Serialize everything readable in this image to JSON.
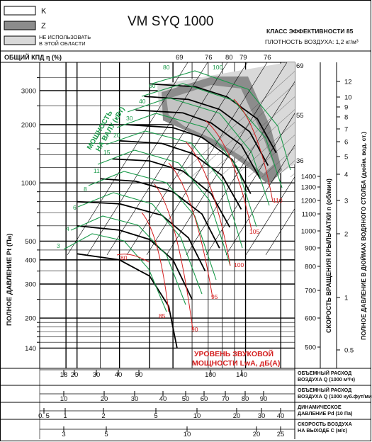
{
  "legend": {
    "items": [
      {
        "label": "K",
        "color": "#ffffff"
      },
      {
        "label": "Z",
        "color": "#8c8c8c"
      },
      {
        "label": "НЕ ИСПОЛЬЗОВАТЬ\nВ ЭТОЙ ОБЛАСТИ",
        "color": "#d9d9d9"
      }
    ]
  },
  "chart_data": {
    "type": "line",
    "title": "VM SYQ 1000",
    "efficiency_class": "КЛАСС ЭФФЕКТИВНОСТИ 85",
    "air_density": "ПЛОТНОСТЬ ВОЗДУХА: 1,2 кг/м³",
    "efficiency_label": "ОБЩИЙ КПД η (%)",
    "ylabel": "ПОЛНОЕ ДАВЛЕНИЕ Pt (Па)",
    "y_scale": "log",
    "ylim": [
      110,
      4200
    ],
    "y_ticks": [
      140,
      200,
      300,
      400,
      500,
      1000,
      2000,
      3000
    ],
    "xlim": [
      14,
      160
    ],
    "x_scale": "log",
    "right_axes": {
      "rpm_label": "СКОРОСТЬ ВРАЩЕНИЯ КРЫЛЬЧАТКИ  n (об/мин)",
      "rpm_ticks": [
        500,
        600,
        700,
        800,
        900,
        1000,
        1100,
        1200,
        1300,
        1400
      ],
      "wc_label": "ПОЛНОЕ ДАВЛЕНИЕ В ДЮЙМАХ ВОДЯНОГО СТОЛБА (дюйм. вод. ст.)",
      "wc_ticks": [
        0.5,
        1,
        2,
        3,
        4,
        5,
        6,
        7,
        8,
        9,
        10,
        12
      ]
    },
    "efficiency_top_labels": [
      "69",
      "76",
      "80",
      "79",
      "76"
    ],
    "efficiency_right_labels": [
      "69",
      "55",
      "36"
    ],
    "shaft_power_label": "МОЩНОСТЬ НА ВАЛУ (кВт)",
    "power_lines": [
      "3",
      "4",
      "6",
      "8",
      "11",
      "15",
      "20",
      "30",
      "40",
      "60",
      "80",
      "100"
    ],
    "sound_label_line1": "УРОВЕНЬ ЗВУКОВОЙ",
    "sound_label_line2": "МОЩНОСТИ LwA, дБ(А)",
    "sound_lines": [
      "80",
      "85",
      "90",
      "95",
      "100",
      "105",
      "110"
    ],
    "series": [
      {
        "rpm": 500,
        "points": [
          [
            20,
            430
          ],
          [
            30,
            400
          ],
          [
            40,
            330
          ],
          [
            48,
            230
          ],
          [
            52,
            140
          ]
        ]
      },
      {
        "rpm": 600,
        "points": [
          [
            20,
            600
          ],
          [
            30,
            570
          ],
          [
            40,
            510
          ],
          [
            50,
            400
          ],
          [
            60,
            250
          ]
        ]
      },
      {
        "rpm": 700,
        "points": [
          [
            20,
            800
          ],
          [
            30,
            780
          ],
          [
            45,
            680
          ],
          [
            58,
            520
          ],
          [
            68,
            350
          ]
        ]
      },
      {
        "rpm": 800,
        "points": [
          [
            25,
            1050
          ],
          [
            35,
            1020
          ],
          [
            50,
            900
          ],
          [
            66,
            690
          ],
          [
            78,
            460
          ]
        ]
      },
      {
        "rpm": 900,
        "points": [
          [
            28,
            1330
          ],
          [
            40,
            1300
          ],
          [
            55,
            1150
          ],
          [
            72,
            880
          ],
          [
            86,
            590
          ]
        ]
      },
      {
        "rpm": 1000,
        "points": [
          [
            30,
            1650
          ],
          [
            45,
            1600
          ],
          [
            60,
            1420
          ],
          [
            80,
            1090
          ],
          [
            96,
            730
          ]
        ]
      },
      {
        "rpm": 1100,
        "points": [
          [
            32,
            2000
          ],
          [
            50,
            1930
          ],
          [
            66,
            1720
          ],
          [
            88,
            1320
          ],
          [
            105,
            880
          ]
        ]
      },
      {
        "rpm": 1200,
        "points": [
          [
            35,
            2380
          ],
          [
            55,
            2300
          ],
          [
            72,
            2040
          ],
          [
            96,
            1570
          ],
          [
            115,
            1050
          ]
        ]
      },
      {
        "rpm": 1300,
        "points": [
          [
            38,
            2800
          ],
          [
            58,
            2700
          ],
          [
            78,
            2400
          ],
          [
            104,
            1840
          ],
          [
            124,
            1230
          ]
        ]
      },
      {
        "rpm": 1400,
        "points": [
          [
            40,
            3250
          ],
          [
            62,
            3140
          ],
          [
            84,
            2780
          ],
          [
            112,
            2140
          ],
          [
            134,
            1430
          ]
        ]
      }
    ]
  },
  "bottom_scales": [
    {
      "label": "ОБЪЕМНЫЙ РАСХОД\nВОЗДУХА Q (1000 м³/ч)",
      "ticks": [
        "18",
        "20",
        "30",
        "40",
        "50",
        "100",
        "140"
      ]
    },
    {
      "label": "ОБЪЕМНЫЙ РАСХОД\nВОЗДУХА Q (1000 куб.фут/мин)",
      "ticks": [
        "10",
        "20",
        "30",
        "40",
        "50",
        "60",
        "70",
        "80",
        "90"
      ]
    },
    {
      "label": "ДИНАМИЧЕСКОЕ\nДАВЛЕНИЕ Pd (10 Па)",
      "ticks": [
        "0. 5",
        "1",
        "2",
        "5",
        "10",
        "20",
        "30",
        "40"
      ]
    },
    {
      "label": "СКОРОСТЬ ВОЗДУХА\nНА ВЫХОДЕ C (м/с)",
      "ticks": [
        "3",
        "5",
        "10",
        "20",
        "25"
      ]
    }
  ]
}
